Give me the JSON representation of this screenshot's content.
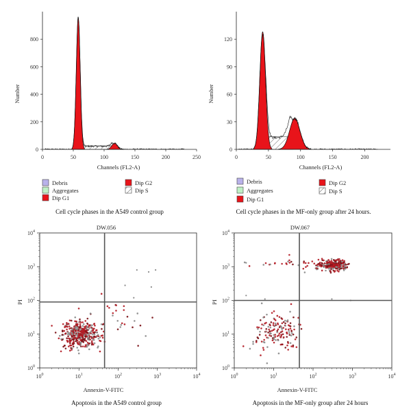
{
  "chart_data": [
    {
      "type": "histogram",
      "id": "hist-control",
      "caption": "Cell cycle phases in the A549 control group",
      "xlabel": "Channels (FL2-A)",
      "ylabel": "Number",
      "xlim": [
        0,
        250
      ],
      "ylim": [
        0,
        1000
      ],
      "xticks": [
        0,
        50,
        100,
        150,
        200,
        250
      ],
      "yticks": [
        0,
        200,
        400,
        600,
        800
      ],
      "legend": [
        "Debris",
        "Aggregates",
        "Dip G1",
        "Dip G2",
        "Dip S"
      ],
      "peaks": [
        {
          "phase": "Dip G1",
          "channel": 58,
          "height": 960,
          "width": 3.2
        },
        {
          "phase": "Dip G2",
          "channel": 117,
          "height": 45,
          "width": 4.5
        }
      ],
      "s_phase_level": 25,
      "s_phase_range": [
        62,
        112
      ]
    },
    {
      "type": "histogram",
      "id": "hist-mf",
      "caption": "Cell cycle phases in the MF-only group after 24 hours.",
      "xlabel": "Channels (FL2-A)",
      "ylabel": "Number",
      "xlim": [
        0,
        240
      ],
      "ylim": [
        0,
        150
      ],
      "xticks": [
        0,
        50,
        100,
        150,
        200
      ],
      "yticks": [
        0,
        30,
        60,
        90,
        120
      ],
      "legend": [
        "Debris",
        "Aggregates",
        "Dip G1",
        "Dip G2",
        "Dip S"
      ],
      "peaks": [
        {
          "phase": "Dip G1",
          "channel": 41,
          "height": 128,
          "width": 4.5
        },
        {
          "phase": "Dip G2",
          "channel": 91,
          "height": 34,
          "width": 8
        }
      ],
      "s_phase_level": 14,
      "s_phase_range": [
        47,
        84
      ]
    },
    {
      "type": "scatter",
      "id": "scatter-control",
      "title": "DW.056",
      "caption": "Apoptosis in the A549 control group",
      "xlabel": "Annexin-V-FITC",
      "ylabel": "PI",
      "xscale": "log",
      "yscale": "log",
      "xlim": [
        1,
        10000
      ],
      "ylim": [
        1,
        10000
      ],
      "quadrant_gate": {
        "x": 45,
        "y": 90
      },
      "clusters": [
        {
          "center": [
            11,
            10
          ],
          "spread_log": [
            0.22,
            0.2
          ],
          "count": 420
        },
        {
          "center": [
            90,
            35
          ],
          "spread_log": [
            0.4,
            0.3
          ],
          "count": 30
        }
      ],
      "extra_points": [
        [
          300,
          800
        ],
        [
          600,
          700
        ],
        [
          900,
          800
        ],
        [
          150,
          280
        ],
        [
          250,
          120
        ],
        [
          700,
          250
        ]
      ]
    },
    {
      "type": "scatter",
      "id": "scatter-mf",
      "title": "DW.067",
      "caption": "Apoptosis in the MF-only group after 24 hours",
      "xlabel": "Annexin-V-FITC",
      "ylabel": "PI",
      "xscale": "log",
      "yscale": "log",
      "xlim": [
        1,
        10000
      ],
      "ylim": [
        1,
        10000
      ],
      "quadrant_gate": {
        "x": 45,
        "y": 100
      },
      "clusters": [
        {
          "center": [
            330,
            1100
          ],
          "spread_log": [
            0.18,
            0.08
          ],
          "count": 260
        },
        {
          "center": [
            12,
            12
          ],
          "spread_log": [
            0.3,
            0.25
          ],
          "count": 160
        },
        {
          "center": [
            40,
            1200
          ],
          "spread_log": [
            0.5,
            0.1
          ],
          "count": 40
        }
      ],
      "extra_points": [
        [
          2,
          140
        ],
        [
          6,
          110
        ],
        [
          300,
          110
        ],
        [
          900,
          100
        ],
        [
          2,
          1300
        ]
      ]
    }
  ],
  "colors": {
    "g1g2_fill": "#e8141a",
    "dot_dark": "#7a1015",
    "dot_red": "#b31a22",
    "dot_gray": "#8a8a8a",
    "debris_swatch": "#b9b2ea",
    "aggregates_swatch": "#bff0c5",
    "gate_line": "#555555"
  }
}
